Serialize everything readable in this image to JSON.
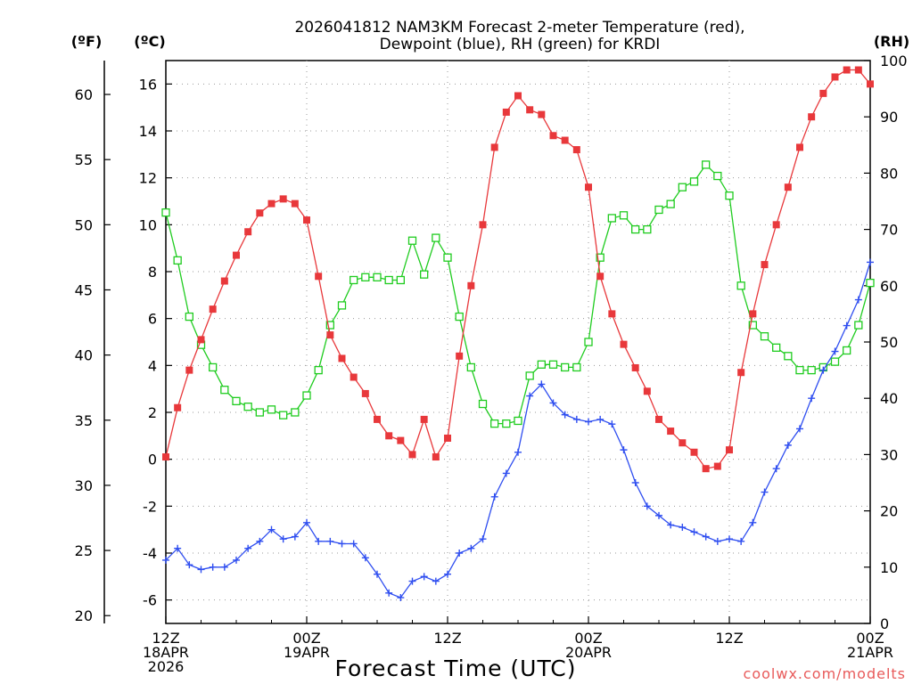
{
  "chart_data": {
    "type": "line",
    "title": [
      "2026041812 NAM3KM Forecast 2-meter Temperature (red),",
      "Dewpoint (blue), RH (green) for KRDI"
    ],
    "xlabel": "Forecast Time (UTC)",
    "left_axis_f": {
      "unit_label": "(ºF)",
      "ticks": [
        "20",
        "25",
        "30",
        "35",
        "40",
        "45",
        "50",
        "55",
        "60"
      ]
    },
    "left_axis_c": {
      "unit_label": "(ºC)",
      "ylim": [
        -7,
        17
      ],
      "ticks": [
        "-6",
        "-4",
        "-2",
        "0",
        "2",
        "4",
        "6",
        "8",
        "10",
        "12",
        "14",
        "16"
      ]
    },
    "right_axis_rh": {
      "unit_label": "(RH)",
      "ylim": [
        0,
        100
      ],
      "ticks": [
        "0",
        "10",
        "20",
        "30",
        "40",
        "50",
        "60",
        "70",
        "80",
        "90",
        "100"
      ]
    },
    "x_range_hours": [
      0,
      60
    ],
    "x_ticks": [
      {
        "h": 0,
        "lines": [
          "12Z",
          "18APR",
          "2026"
        ]
      },
      {
        "h": 12,
        "lines": [
          "00Z",
          "19APR"
        ]
      },
      {
        "h": 24,
        "lines": [
          "12Z"
        ]
      },
      {
        "h": 36,
        "lines": [
          "00Z",
          "20APR"
        ]
      },
      {
        "h": 48,
        "lines": [
          "12Z"
        ]
      },
      {
        "h": 60,
        "lines": [
          "00Z",
          "21APR"
        ]
      }
    ],
    "series": [
      {
        "name": "2-meter Temperature",
        "axis": "C",
        "color": "#e8383b",
        "marker": "filled-square",
        "values": [
          0.1,
          2.2,
          3.8,
          5.1,
          6.4,
          7.6,
          8.7,
          9.7,
          10.5,
          10.9,
          11.1,
          10.9,
          10.2,
          7.8,
          5.3,
          4.3,
          3.5,
          2.8,
          1.7,
          1.0,
          0.8,
          0.2,
          1.7,
          0.1,
          0.9,
          4.4,
          7.4,
          10.0,
          13.3,
          14.8,
          15.5,
          14.9,
          14.7,
          13.8,
          13.6,
          13.2,
          11.6,
          7.8,
          6.2,
          4.9,
          3.9,
          2.9,
          1.7,
          1.2,
          0.7,
          0.3,
          -0.4,
          -0.3,
          0.4,
          3.7,
          6.2,
          8.3,
          10.0,
          11.6,
          13.3,
          14.6,
          15.6,
          16.3,
          16.6,
          16.6,
          16.0
        ]
      },
      {
        "name": "Dewpoint",
        "axis": "C",
        "color": "#2f4ef0",
        "marker": "plus",
        "values": [
          -4.3,
          -3.8,
          -4.5,
          -4.7,
          -4.6,
          -4.6,
          -4.3,
          -3.8,
          -3.5,
          -3.0,
          -3.4,
          -3.3,
          -2.7,
          -3.5,
          -3.5,
          -3.6,
          -3.6,
          -4.2,
          -4.9,
          -5.7,
          -5.9,
          -5.2,
          -5.0,
          -5.2,
          -4.9,
          -4.0,
          -3.8,
          -3.4,
          -1.6,
          -0.6,
          0.3,
          2.7,
          3.2,
          2.4,
          1.9,
          1.7,
          1.6,
          1.7,
          1.5,
          0.4,
          -1.0,
          -2.0,
          -2.4,
          -2.8,
          -2.9,
          -3.1,
          -3.3,
          -3.5,
          -3.4,
          -3.5,
          -2.7,
          -1.4,
          -0.4,
          0.6,
          1.3,
          2.6,
          3.8,
          4.6,
          5.7,
          6.8,
          8.4
        ]
      },
      {
        "name": "RH",
        "axis": "RH",
        "color": "#1fcc1f",
        "marker": "open-square",
        "values": [
          73,
          64.5,
          54.5,
          49.5,
          45.5,
          41.5,
          39.5,
          38.5,
          37.5,
          38,
          37,
          37.5,
          40.5,
          45,
          53,
          56.5,
          61,
          61.5,
          61.5,
          61,
          61,
          68,
          62,
          68.5,
          65,
          54.5,
          45.5,
          39,
          35.5,
          35.5,
          36,
          44,
          46,
          46,
          45.5,
          45.5,
          50,
          65,
          72,
          72.5,
          70,
          70,
          73.5,
          74.5,
          77.5,
          78.5,
          81.5,
          79.5,
          76,
          60,
          53,
          51,
          49,
          47.5,
          45,
          45,
          45.5,
          46.5,
          48.5,
          53,
          60.5
        ]
      }
    ],
    "watermark": "coolwx.com/modelts"
  }
}
